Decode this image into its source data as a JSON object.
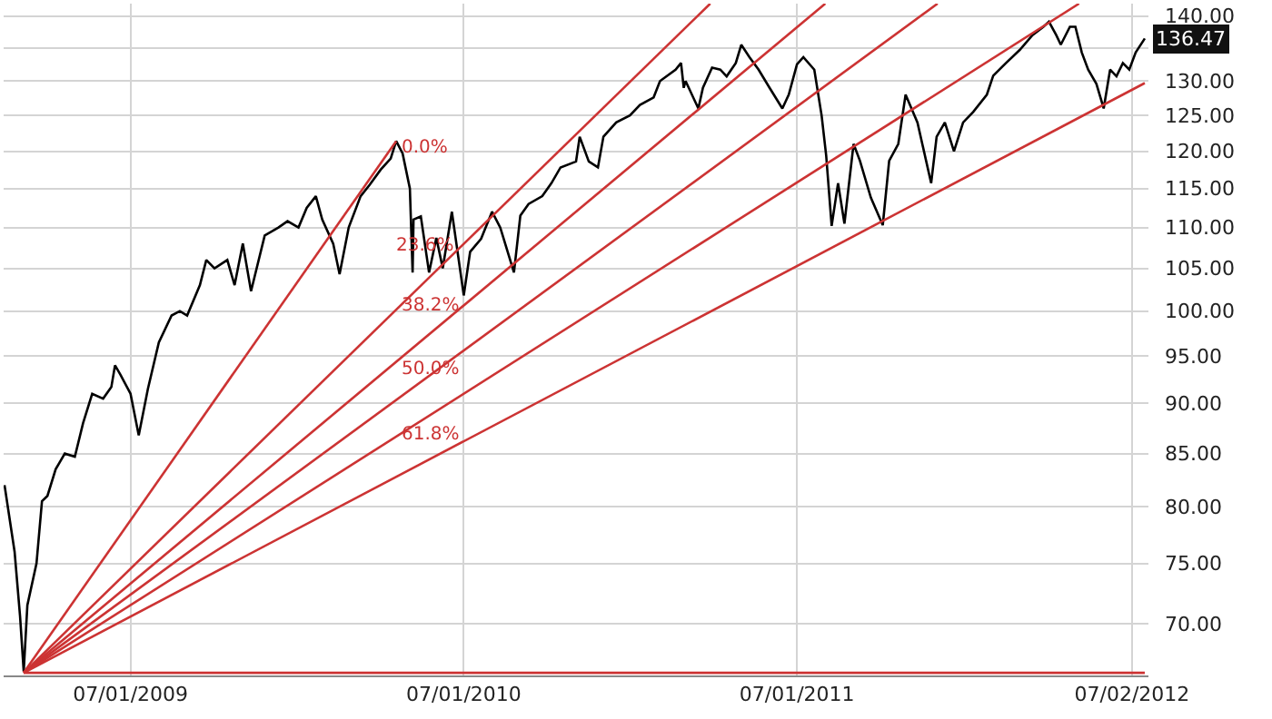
{
  "chart_data": {
    "type": "line",
    "log": "y",
    "grid": true,
    "xlim": [
      "2009-02-12",
      "2012-07-20"
    ],
    "xticks": [
      {
        "value": "2009-07-01",
        "label": "07/01/2009"
      },
      {
        "value": "2010-07-01",
        "label": "07/01/2010"
      },
      {
        "value": "2011-07-01",
        "label": "07/01/2011"
      },
      {
        "value": "2012-07-02",
        "label": "07/02/2012"
      }
    ],
    "ylim": [
      66,
      142
    ],
    "yticks": [
      {
        "value": 70,
        "label": "70.00"
      },
      {
        "value": 75,
        "label": "75.00"
      },
      {
        "value": 80,
        "label": "80.00"
      },
      {
        "value": 85,
        "label": "85.00"
      },
      {
        "value": 90,
        "label": "90.00"
      },
      {
        "value": 95,
        "label": "95.00"
      },
      {
        "value": 100,
        "label": "100.00"
      },
      {
        "value": 105,
        "label": "105.00"
      },
      {
        "value": 110,
        "label": "110.00"
      },
      {
        "value": 115,
        "label": "115.00"
      },
      {
        "value": 120,
        "label": "120.00"
      },
      {
        "value": 125,
        "label": "125.00"
      },
      {
        "value": 130,
        "label": "130.00"
      },
      {
        "value": 135,
        "label": null
      },
      {
        "value": 140,
        "label": "140.00"
      }
    ],
    "series": [
      {
        "color": "#000000",
        "x": [
          "2009-02-13",
          "2009-02-24",
          "2009-03-02",
          "2009-03-06",
          "2009-03-10",
          "2009-03-20",
          "2009-03-26",
          "2009-04-01",
          "2009-04-10",
          "2009-04-20",
          "2009-05-01",
          "2009-05-10",
          "2009-05-20",
          "2009-06-01",
          "2009-06-10",
          "2009-06-14",
          "2009-06-20",
          "2009-07-01",
          "2009-07-10",
          "2009-07-20",
          "2009-08-01",
          "2009-08-15",
          "2009-08-24",
          "2009-09-01",
          "2009-09-15",
          "2009-09-22",
          "2009-10-01",
          "2009-10-15",
          "2009-10-23",
          "2009-11-01",
          "2009-11-10",
          "2009-11-25",
          "2009-12-10",
          "2009-12-20",
          "2010-01-01",
          "2010-01-10",
          "2010-01-20",
          "2010-01-27",
          "2010-02-08",
          "2010-02-15",
          "2010-02-25",
          "2010-03-10",
          "2010-03-20",
          "2010-04-01",
          "2010-04-12",
          "2010-04-18",
          "2010-04-25",
          "2010-05-03",
          "2010-05-06",
          "2010-05-07",
          "2010-05-15",
          "2010-05-24",
          "2010-06-01",
          "2010-06-08",
          "2010-06-18",
          "2010-07-01",
          "2010-07-08",
          "2010-07-20",
          "2010-08-01",
          "2010-08-10",
          "2010-08-25",
          "2010-09-01",
          "2010-09-10",
          "2010-09-25",
          "2010-10-05",
          "2010-10-15",
          "2010-11-01",
          "2010-11-05",
          "2010-11-15",
          "2010-11-25",
          "2010-12-01",
          "2010-12-15",
          "2010-12-30",
          "2011-01-10",
          "2011-01-25",
          "2011-02-01",
          "2011-02-18",
          "2011-02-24",
          "2011-02-27",
          "2011-03-01",
          "2011-03-15",
          "2011-03-20",
          "2011-03-30",
          "2011-04-08",
          "2011-04-15",
          "2011-04-25",
          "2011-05-01",
          "2011-05-10",
          "2011-05-20",
          "2011-06-01",
          "2011-06-15",
          "2011-06-22",
          "2011-07-01",
          "2011-07-08",
          "2011-07-20",
          "2011-07-28",
          "2011-08-02",
          "2011-08-08",
          "2011-08-15",
          "2011-08-22",
          "2011-09-01",
          "2011-09-08",
          "2011-09-20",
          "2011-10-03",
          "2011-10-10",
          "2011-10-20",
          "2011-10-28",
          "2011-11-10",
          "2011-11-25",
          "2011-12-01",
          "2011-12-10",
          "2011-12-20",
          "2011-12-30",
          "2012-01-10",
          "2012-01-25",
          "2012-02-01",
          "2012-02-15",
          "2012-03-01",
          "2012-03-15",
          "2012-03-27",
          "2012-04-02",
          "2012-04-10",
          "2012-04-15",
          "2012-04-25",
          "2012-05-01",
          "2012-05-08",
          "2012-05-15",
          "2012-05-24",
          "2012-06-01",
          "2012-06-08",
          "2012-06-15",
          "2012-06-22",
          "2012-06-29",
          "2012-07-06",
          "2012-07-16"
        ],
        "values": [
          82,
          76,
          70.6,
          66.3,
          71.5,
          75,
          80.5,
          81,
          83.5,
          85,
          84.7,
          88,
          91,
          90.5,
          91.7,
          94,
          93,
          91,
          86.8,
          91.5,
          96.5,
          99.5,
          100,
          99.5,
          103,
          106,
          105,
          106,
          103,
          108,
          102.3,
          109,
          110,
          110.8,
          110,
          112.5,
          114,
          111,
          108,
          104.3,
          110,
          114,
          115.5,
          117.5,
          119,
          121.4,
          119.7,
          115,
          104.5,
          111,
          111.4,
          104.5,
          108.7,
          105,
          112,
          101.8,
          107,
          108.6,
          112,
          110,
          104.5,
          111.5,
          113,
          114,
          115.7,
          117.8,
          118.6,
          122,
          118.6,
          117.8,
          122,
          124,
          125,
          126.5,
          127.6,
          130,
          131.7,
          132.7,
          129,
          130,
          126,
          129,
          132,
          131.7,
          130.7,
          132.7,
          135.5,
          133.6,
          131.7,
          129,
          126,
          128,
          132.5,
          133.6,
          131.7,
          125,
          119.4,
          110.2,
          115.7,
          110.5,
          121,
          118.7,
          113.8,
          110.3,
          118.7,
          121,
          128,
          124,
          115.7,
          122,
          124,
          120,
          124,
          125.5,
          128,
          130.8,
          132.7,
          134.7,
          137,
          138.3,
          139.1,
          137,
          135.5,
          138.3,
          138.3,
          134.3,
          131.7,
          129.6,
          126,
          131.7,
          130.7,
          132.7,
          131.7,
          134.3,
          136.47
        ]
      },
      {
        "color": "#cc3333",
        "x": [
          "2009-03-06",
          "2010-04-18"
        ],
        "values": [
          66.2,
          121.4
        ]
      },
      {
        "color": "#cc3333",
        "x": [
          "2009-03-06",
          "2011-03-28"
        ],
        "values": [
          66.2,
          142
        ]
      },
      {
        "color": "#cc3333",
        "x": [
          "2009-03-06",
          "2011-08-01"
        ],
        "values": [
          66.2,
          142
        ]
      },
      {
        "color": "#cc3333",
        "x": [
          "2009-03-06",
          "2011-12-02"
        ],
        "values": [
          66.2,
          142
        ]
      },
      {
        "color": "#cc3333",
        "x": [
          "2009-03-06",
          "2012-05-05"
        ],
        "values": [
          66.2,
          142
        ]
      },
      {
        "color": "#cc3333",
        "x": [
          "2009-03-06",
          "2012-07-16"
        ],
        "values": [
          66.2,
          129.7
        ]
      },
      {
        "color": "#cc3333",
        "x": [
          "2009-03-06",
          "2012-07-16"
        ],
        "values": [
          66.2,
          66.2
        ]
      }
    ],
    "annotations": [
      {
        "text": "0.0%",
        "x": "2010-04-20",
        "y": 120.4
      },
      "23.6%",
      {
        "text": "38.2%",
        "x": "2010-04-20",
        "y": 100.5
      },
      {
        "text": "50.0%",
        "x": "2010-04-20",
        "y": 93.5
      },
      {
        "text": "61.8%",
        "x": "2010-04-20",
        "y": 86.9
      },
      {
        "text": "136.47",
        "y": 136.47
      }
    ]
  }
}
